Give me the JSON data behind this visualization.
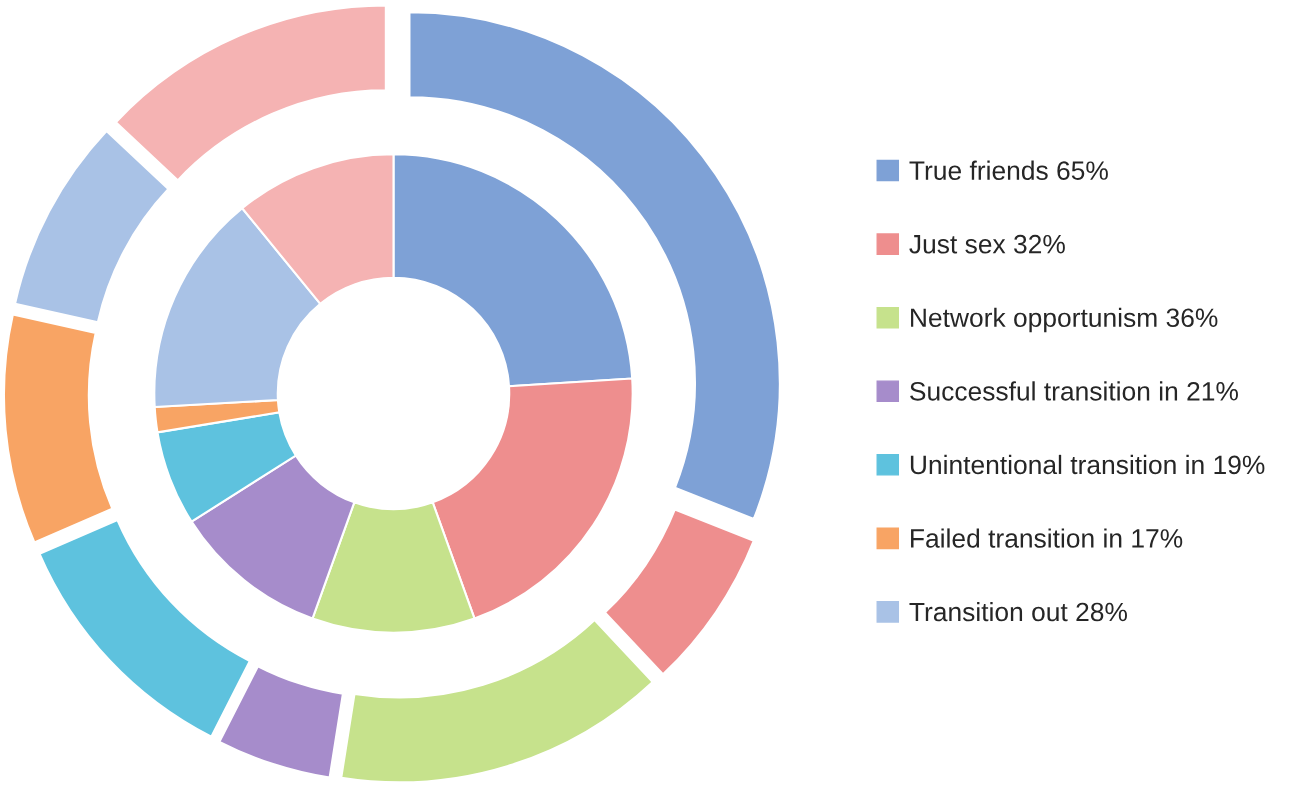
{
  "chart_data": {
    "type": "donut",
    "categories": [
      "True friends 65%",
      "Just sex 32%",
      "Network opportunism 36%",
      "Successful transition in 21%",
      "Unintentional transition in 19%",
      "Failed transition in 17%",
      "Transition out 28%",
      null
    ],
    "colors": [
      "#7ea1d6",
      "#ee8e8e",
      "#c6e28c",
      "#a68ccb",
      "#5ec2de",
      "#f8a464",
      "#a9c2e6",
      "#f5b3b3"
    ],
    "series": [
      {
        "values": [
          24,
          20.5,
          11,
          10.5,
          6.4,
          1.7,
          15,
          10.9
        ]
      },
      {
        "values": [
          31,
          7,
          14.5,
          5,
          11,
          10,
          8.5,
          13
        ]
      }
    ],
    "legend": "right"
  }
}
